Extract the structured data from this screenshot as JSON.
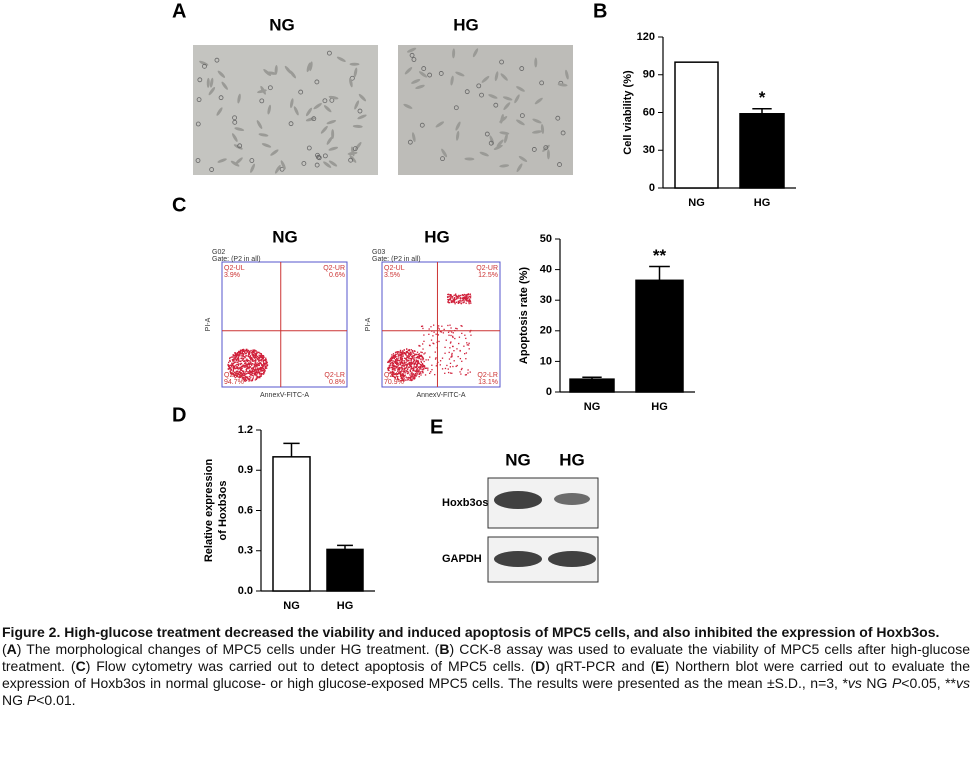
{
  "panels": {
    "A": {
      "letter": "A",
      "labels": [
        "NG",
        "HG"
      ]
    },
    "C": {
      "letter": "C",
      "labels": [
        "NG",
        "HG"
      ],
      "plots": [
        {
          "gate": "G02",
          "gate_text": "Gate: (P2 in all)",
          "quadrants": [
            "Q2-UL",
            "Q2-UR",
            "Q2-LL",
            "Q2-LR"
          ],
          "percents": [
            "3.9%",
            "0.6%",
            "94.7%",
            "0.8%"
          ],
          "xlabel": "AnnexV-FITC-A",
          "ylabel": "PI-A"
        },
        {
          "gate": "G03",
          "gate_text": "Gate: (P2 in all)",
          "quadrants": [
            "Q2-UL",
            "Q2-UR",
            "Q2-LL",
            "Q2-LR"
          ],
          "percents": [
            "3.5%",
            "12.5%",
            "70.9%",
            "13.1%"
          ],
          "xlabel": "AnnexV-FITC-A",
          "ylabel": "PI-A"
        }
      ]
    },
    "E": {
      "letter": "E",
      "labels": [
        "NG",
        "HG"
      ],
      "rows": [
        "Hoxb3os",
        "GAPDH"
      ]
    }
  },
  "chart_data": [
    {
      "type": "bar",
      "letter": "B",
      "ylabel": [
        "Cell viability (%)"
      ],
      "categories": [
        "NG",
        "HG"
      ],
      "values": [
        100,
        59
      ],
      "errors": [
        0,
        4
      ],
      "significance": [
        null,
        "*"
      ],
      "colors": [
        "#ffffff",
        "#000000"
      ],
      "ylim": [
        0,
        120
      ],
      "yticks": [
        0,
        30,
        60,
        90,
        120
      ]
    },
    {
      "type": "bar",
      "letter": "C",
      "ylabel": [
        "Apoptosis rate (%)"
      ],
      "categories": [
        "NG",
        "HG"
      ],
      "values": [
        4.2,
        36.5
      ],
      "errors": [
        0.6,
        4.5
      ],
      "significance": [
        null,
        "**"
      ],
      "colors": [
        "#000000",
        "#000000"
      ],
      "ylim": [
        0,
        50
      ],
      "yticks": [
        0,
        10,
        20,
        30,
        40,
        50
      ]
    },
    {
      "type": "bar",
      "letter": "D",
      "ylabel": [
        "Relative expression",
        "of Hoxb3os"
      ],
      "categories": [
        "NG",
        "HG"
      ],
      "values": [
        1.0,
        0.31
      ],
      "errors": [
        0.1,
        0.03
      ],
      "significance": [
        null,
        null
      ],
      "colors": [
        "#ffffff",
        "#000000"
      ],
      "ylim": [
        0,
        1.2
      ],
      "yticks": [
        {
          "value": 0,
          "label": "0.0"
        },
        0.3,
        0.6,
        0.9,
        1.2
      ]
    }
  ],
  "caption": {
    "title": "Figure 2. High-glucose treatment decreased the viability and induced apoptosis of MPC5 cells, and also inhibited the expression of Hoxb3os.",
    "body": [
      "(",
      "A",
      ") The morphological changes of MPC5 cells under HG treatment. (",
      "B",
      ") CCK-8 assay was used to evaluate the viability of MPC5 cells after high-glucose treatment. (",
      "C",
      ") Flow cytometry was carried out to detect apoptosis of MPC5 cells. (",
      "D",
      ") qRT-PCR and (",
      "E",
      ") Northern blot were carried out to evaluate the expression of Hoxb3os in normal glucose- or high glucose-exposed MPC5 cells. The results were presented as the mean ±S.D., n=3, *",
      "vs",
      " NG ",
      "P",
      "<0.05, **",
      "vs",
      " NG ",
      "P",
      "<0.01."
    ]
  }
}
